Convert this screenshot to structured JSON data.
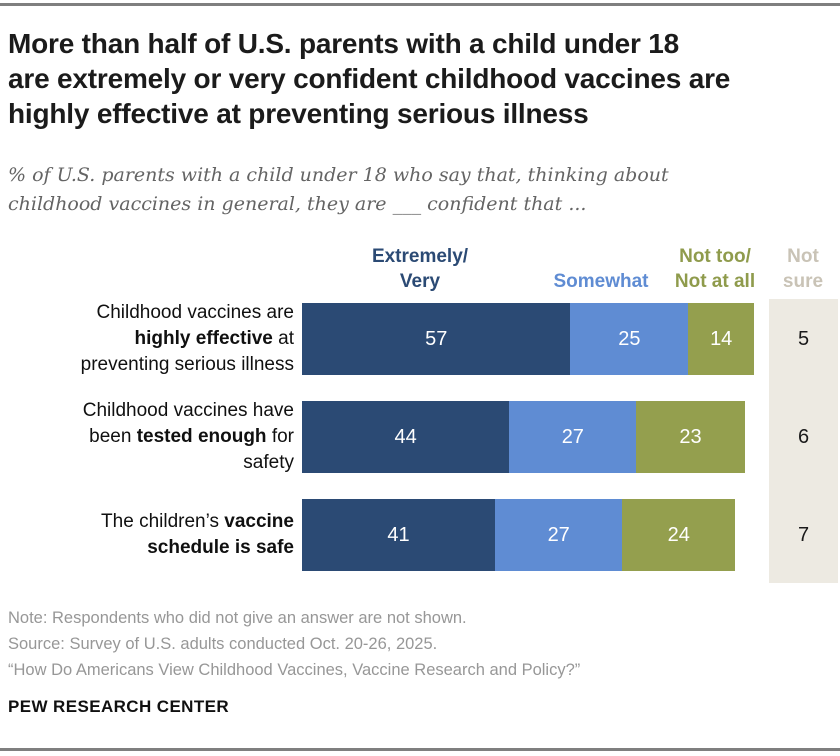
{
  "header": {
    "title": "More than half of U.S. parents with a child under 18\nare extremely or very confident childhood vaccines are\nhighly effective at preventing serious illness",
    "subtitle": "% of U.S. parents with a child under 18 who say that, thinking about\nchildhood vaccines in general, they are ___ confident that ..."
  },
  "chart_data": {
    "type": "bar",
    "orientation": "horizontal",
    "stacked": true,
    "unit": "%",
    "axis_max": 100,
    "legend_position": "column-headers-top",
    "grid": false,
    "column_headers": [
      {
        "key": "extremely_very",
        "label": "Extremely/\nVery",
        "color": "#2b4a74"
      },
      {
        "key": "somewhat",
        "label": "Somewhat",
        "color": "#5f8cd3"
      },
      {
        "key": "not_too_not_at_all",
        "label": "Not too/\nNot at all",
        "color": "#8f9b4c"
      },
      {
        "key": "not_sure",
        "label": "Not\nsure",
        "color": "#c9c3b6"
      }
    ],
    "colors": [
      "#2b4a74",
      "#5f8cd3",
      "#949f4e"
    ],
    "not_sure_band_color": "#edeae2",
    "rows": [
      {
        "category": "Childhood vaccines are highly effective at preventing serious illness",
        "label_parts": [
          [
            "Childhood vaccines are\n",
            false
          ],
          [
            "highly effective",
            true
          ],
          [
            " at\npreventing serious illness",
            false
          ]
        ],
        "values": [
          57,
          25,
          14
        ],
        "not_sure": 5
      },
      {
        "category": "Childhood vaccines have been tested enough for safety",
        "label_parts": [
          [
            "Childhood vaccines have\nbeen ",
            false
          ],
          [
            "tested enough",
            true
          ],
          [
            " for\nsafety",
            false
          ]
        ],
        "values": [
          44,
          27,
          23
        ],
        "not_sure": 6
      },
      {
        "category": "The children’s vaccine schedule is safe",
        "label_parts": [
          [
            "The children’s ",
            false
          ],
          [
            "vaccine\nschedule is safe",
            true
          ]
        ],
        "values": [
          41,
          27,
          24
        ],
        "not_sure": 7
      }
    ]
  },
  "footer": {
    "note": "Note: Respondents who did not give an answer are not shown.",
    "source": "Source: Survey of U.S. adults conducted Oct. 20-26, 2025.",
    "report": "“How Do Americans View Childhood Vaccines, Vaccine Research and Policy?”",
    "brand": "PEW RESEARCH CENTER"
  }
}
